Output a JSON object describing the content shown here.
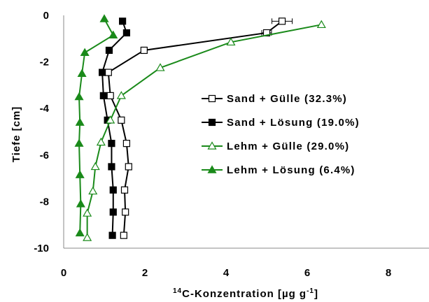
{
  "chart_data": {
    "type": "line",
    "title": "",
    "xlabel": {
      "pre": "",
      "sup1": "14",
      "main": "C-Konzentration [µg g",
      "sup2": "-1",
      "post": "]"
    },
    "ylabel": "Tiefe [cm]",
    "xlim": [
      0,
      9
    ],
    "ylim": [
      -10,
      0
    ],
    "x_ticks": [
      0,
      2,
      4,
      6,
      8
    ],
    "y_ticks": [
      0,
      -2,
      -4,
      -6,
      -8,
      -10
    ],
    "grid": false,
    "legend_position": "right-center",
    "series": [
      {
        "name": "Sand + Gülle (32.3%)",
        "color": "#000000",
        "marker": "open-square",
        "x": [
          5.38,
          5.0,
          1.98,
          1.1,
          1.15,
          1.42,
          1.55,
          1.6,
          1.5,
          1.52,
          1.48
        ],
        "y": [
          -0.25,
          -0.75,
          -1.5,
          -2.45,
          -3.45,
          -4.5,
          -5.5,
          -6.5,
          -7.5,
          -8.45,
          -9.45
        ],
        "xerr": [
          0.25,
          0.12,
          0,
          0,
          0,
          0,
          0,
          0,
          0,
          0,
          0
        ]
      },
      {
        "name": "Sand + Lösung (19.0%)",
        "color": "#000000",
        "marker": "filled-square",
        "x": [
          1.45,
          1.55,
          1.12,
          0.95,
          0.98,
          1.08,
          1.18,
          1.18,
          1.22,
          1.22,
          1.2
        ],
        "y": [
          -0.25,
          -0.75,
          -1.5,
          -2.45,
          -3.45,
          -4.5,
          -5.5,
          -6.5,
          -7.5,
          -8.45,
          -9.45
        ]
      },
      {
        "name": "Lehm + Gülle (29.0%)",
        "color": "#1a8a1a",
        "marker": "open-triangle",
        "x": [
          6.35,
          4.12,
          2.38,
          1.42,
          1.15,
          0.92,
          0.78,
          0.72,
          0.58,
          0.58
        ],
        "y": [
          -0.4,
          -1.15,
          -2.25,
          -3.45,
          -4.5,
          -5.45,
          -6.5,
          -7.55,
          -8.5,
          -9.55
        ]
      },
      {
        "name": "Lehm + Lösung (6.4%)",
        "color": "#1a8a1a",
        "marker": "filled-triangle",
        "x": [
          1.0,
          1.22,
          0.52,
          0.45,
          0.38,
          0.4,
          0.38,
          0.4,
          0.42,
          0.4
        ],
        "y": [
          -0.15,
          -0.85,
          -1.6,
          -2.5,
          -3.5,
          -4.6,
          -5.5,
          -6.85,
          -8.1,
          -9.35
        ]
      }
    ]
  }
}
